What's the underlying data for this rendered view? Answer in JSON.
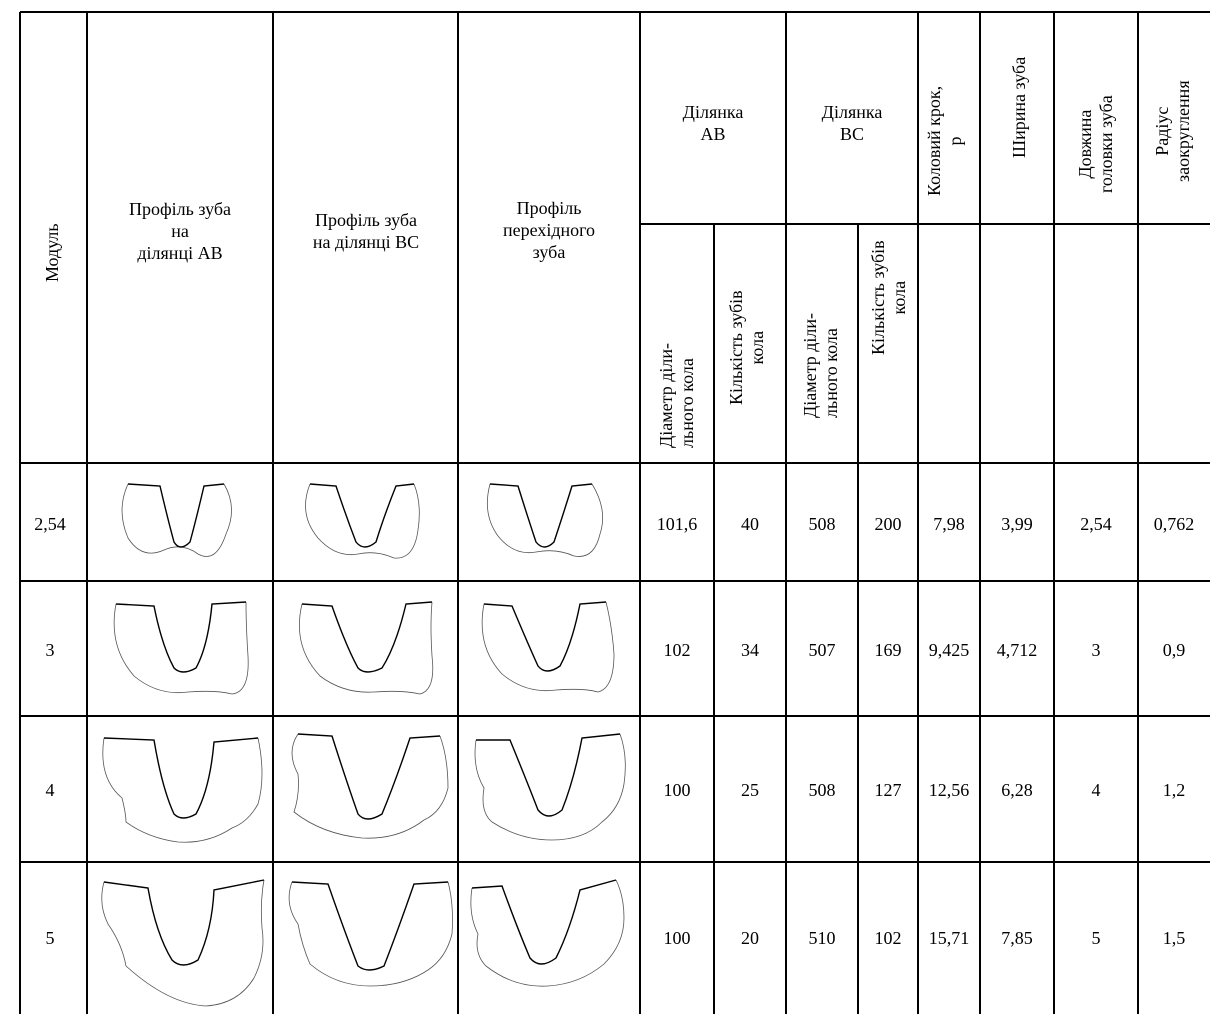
{
  "headers": {
    "module": "Модуль",
    "profile_ab": "Профіль зуба\nна\nділянці АВ",
    "profile_bc": "Профіль зуба\nна ділянці ВС",
    "profile_transition": "Профіль\nперехідного\nзуба",
    "section_ab": "Ділянка\nАВ",
    "section_bc": "Ділянка\nВС",
    "diameter_ab": "Діаметр діли-\nльного кола",
    "teeth_ab": "Кількість зубів\nкола",
    "diameter_bc": "Діаметр діли-\nльного кола",
    "teeth_bc": "Кількість зубів\nкола",
    "pitch": "Коловий крок,\np",
    "tooth_width": "Ширина зуба",
    "addendum": "Довжина\nголовки зуба",
    "radius": "Радіус\nзаокруглення"
  },
  "rows": [
    {
      "module": "2,54",
      "d_ab": "101,6",
      "z_ab": "40",
      "d_bc": "508",
      "z_bc": "200",
      "pitch": "7,98",
      "width": "3,99",
      "addendum": "2,54",
      "radius": "0,762"
    },
    {
      "module": "3",
      "d_ab": "102",
      "z_ab": "34",
      "d_bc": "507",
      "z_bc": "169",
      "pitch": "9,425",
      "width": "4,712",
      "addendum": "3",
      "radius": "0,9"
    },
    {
      "module": "4",
      "d_ab": "100",
      "z_ab": "25",
      "d_bc": "508",
      "z_bc": "127",
      "pitch": "12,56",
      "width": "6,28",
      "addendum": "4",
      "radius": "1,2"
    },
    {
      "module": "5",
      "d_ab": "100",
      "z_ab": "20",
      "d_bc": "510",
      "z_bc": "102",
      "pitch": "15,71",
      "width": "7,85",
      "addendum": "5",
      "radius": "1,5"
    }
  ]
}
